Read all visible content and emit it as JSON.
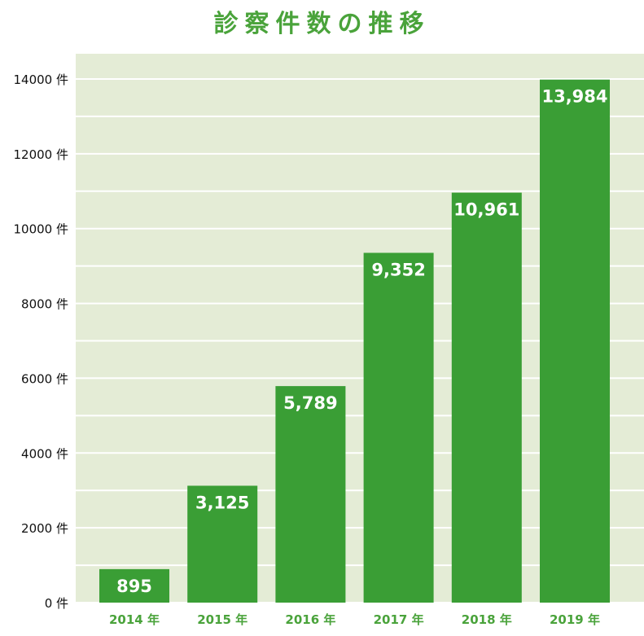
{
  "chart_data": {
    "type": "bar",
    "title": "診察件数の推移",
    "categories": [
      "2014 年",
      "2015 年",
      "2016 年",
      "2017 年",
      "2018 年",
      "2019 年"
    ],
    "values": [
      895,
      3125,
      5789,
      9352,
      10961,
      13984
    ],
    "data_labels": [
      "895",
      "3,125",
      "5,789",
      "9,352",
      "10,961",
      "13,984"
    ],
    "ylim": [
      0,
      14000
    ],
    "yticks": [
      0,
      2000,
      4000,
      6000,
      8000,
      10000,
      12000,
      14000
    ],
    "ytick_labels": [
      "0 件",
      "2000 件",
      "4000 件",
      "6000 件",
      "8000 件",
      "10000 件",
      "12000 件",
      "14000 件"
    ],
    "xlabel": "",
    "ylabel": "",
    "grid": true,
    "legend": "none",
    "colors": {
      "bar": "#3a9e35",
      "plot_background": "#e4ecd6",
      "title": "#4aa33b",
      "x_tick_labels": "#4aa33b",
      "grid": "#ffffff"
    }
  }
}
